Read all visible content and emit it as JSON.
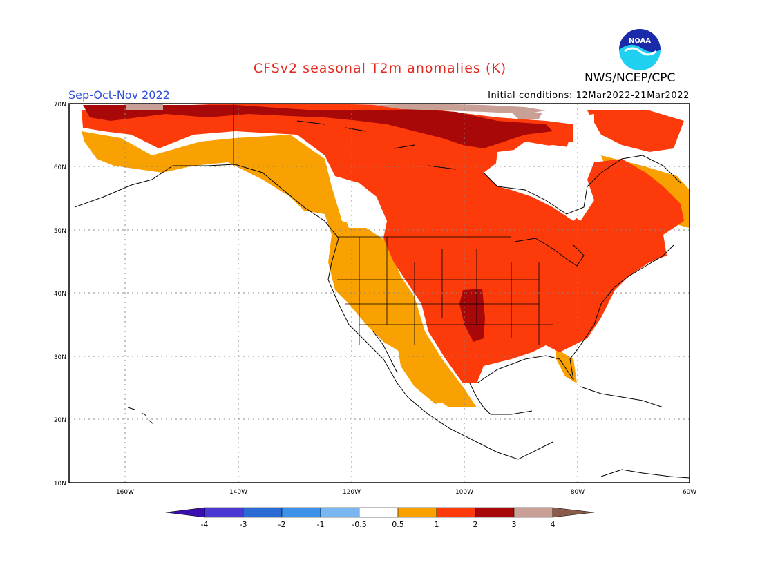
{
  "title": "CFSv2 seasonal T2m anomalies (K)",
  "season": "Sep-Oct-Nov 2022",
  "initial_conditions": "Initial conditions: 12Mar2022-21Mar2022",
  "agency": "NWS/NCEP/CPC",
  "logo_text": "NOAA",
  "map": {
    "lat_labels": [
      "70N",
      "60N",
      "50N",
      "40N",
      "30N",
      "20N",
      "10N"
    ],
    "lon_labels": [
      "160W",
      "140W",
      "120W",
      "100W",
      "80W",
      "60W"
    ]
  },
  "colorbar": {
    "labels": [
      "-4",
      "-3",
      "-2",
      "-1",
      "-0.5",
      "0.5",
      "1",
      "2",
      "3",
      "4"
    ],
    "colors": [
      "#3a0fb0",
      "#4a38d2",
      "#2a6ad4",
      "#3c92e8",
      "#7ab6f0",
      "#ffffff",
      "#f9a100",
      "#fd3a0a",
      "#a80808",
      "#c8a096",
      "#8a5a4a"
    ]
  },
  "legend_colors": {
    "c05": "#f9a100",
    "c1": "#fd3a0a",
    "c2": "#a80808",
    "c3": "#c8a096"
  }
}
